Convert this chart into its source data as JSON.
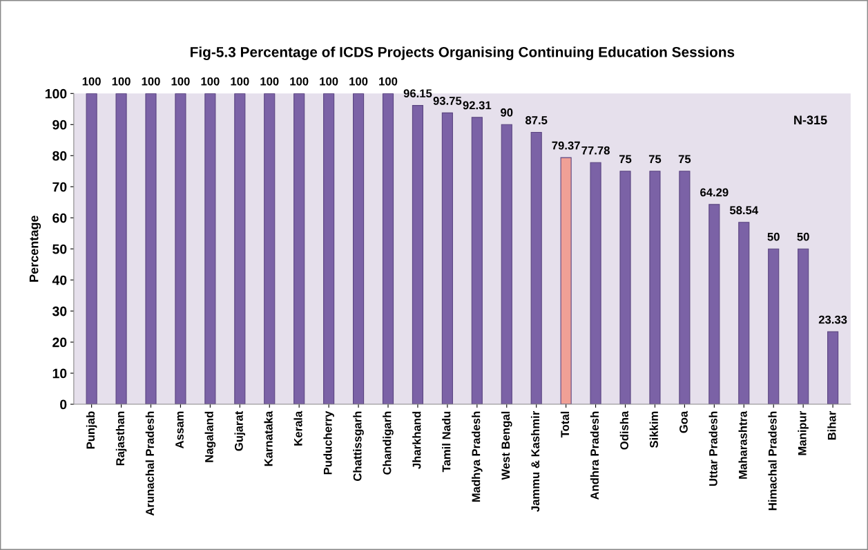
{
  "chart_data": {
    "type": "bar",
    "title": "Fig-5.3 Percentage of ICDS Projects Organising Continuing Education Sessions",
    "ylabel": "Percentage",
    "categories": [
      "Punjab",
      "Rajasthan",
      "Arunachal Pradesh",
      "Assam",
      "Nagaland",
      "Gujarat",
      "Karnataka",
      "Kerala",
      "Puducherry",
      "Chattissgarh",
      "Chandigarh",
      "Jharkhand",
      "Tamil Nadu",
      "Madhya Pradesh",
      "West Bengal",
      "Jammu & Kashmir",
      "Total",
      "Andhra Pradesh",
      "Odisha",
      "Sikkim",
      "Goa",
      "Uttar Pradesh",
      "Maharashtra",
      "Himachal Pradesh",
      "Manipur",
      "Bihar"
    ],
    "values": [
      100,
      100,
      100,
      100,
      100,
      100,
      100,
      100,
      100,
      100,
      100,
      96.15,
      93.75,
      92.31,
      90,
      87.5,
      79.37,
      77.78,
      75,
      75,
      75,
      64.29,
      58.54,
      50,
      50,
      23.33
    ],
    "colors": [
      "#7b62a6",
      "#7b62a6",
      "#7b62a6",
      "#7b62a6",
      "#7b62a6",
      "#7b62a6",
      "#7b62a6",
      "#7b62a6",
      "#7b62a6",
      "#7b62a6",
      "#7b62a6",
      "#7b62a6",
      "#7b62a6",
      "#7b62a6",
      "#7b62a6",
      "#7b62a6",
      "#f0a096",
      "#7b62a6",
      "#7b62a6",
      "#7b62a6",
      "#7b62a6",
      "#7b62a6",
      "#7b62a6",
      "#7b62a6",
      "#7b62a6",
      "#7b62a6"
    ],
    "ylim": [
      0,
      100
    ],
    "yticks": [
      0,
      10,
      20,
      30,
      40,
      50,
      60,
      70,
      80,
      90,
      100
    ],
    "data_labels": true,
    "grid": false,
    "legend": false,
    "annotations": [
      "N-315"
    ]
  }
}
